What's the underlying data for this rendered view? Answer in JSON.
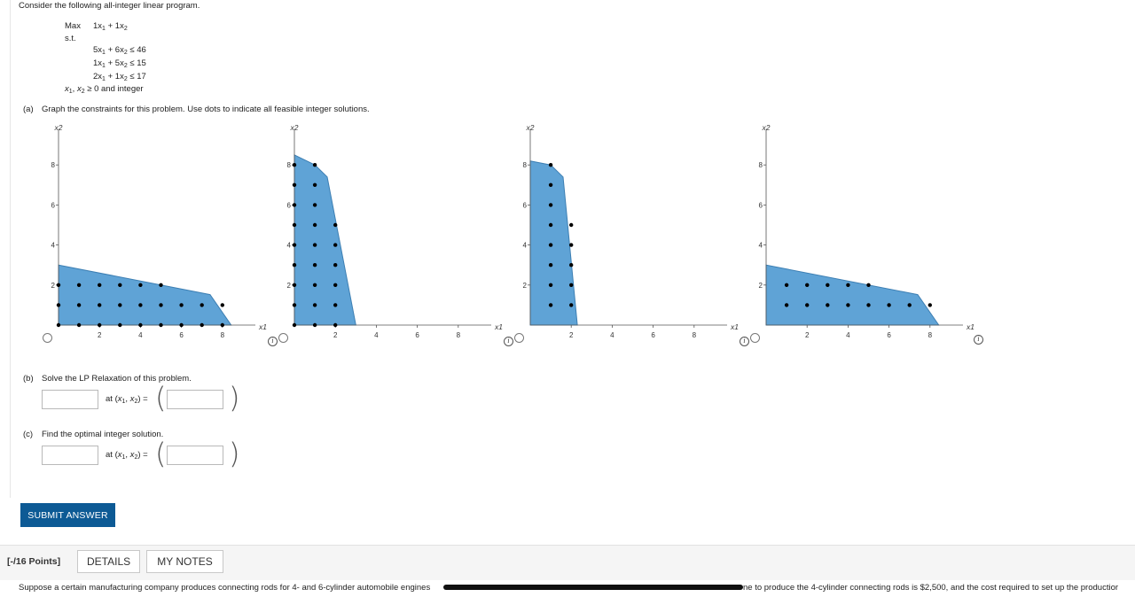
{
  "question": {
    "intro": "Consider the following all-integer linear program.",
    "objective": {
      "label": "Max",
      "expr": [
        "1x",
        "1",
        "+",
        "1x",
        "2"
      ]
    },
    "st": "s.t.",
    "constraints": [
      {
        "c1": "5x",
        "c2": "6x",
        "rel": "≤",
        "rhs": "46"
      },
      {
        "c1": "1x",
        "c2": "5x",
        "rel": "≤",
        "rhs": "15"
      },
      {
        "c1": "2x",
        "c2": "1x",
        "rel": "≤",
        "rhs": "17"
      }
    ],
    "nonneg": "≥ 0 and integer"
  },
  "part_a": {
    "label": "(a)",
    "text": "Graph the constraints for this problem. Use dots to indicate all feasible integer solutions."
  },
  "part_b": {
    "label": "(b)",
    "text": "Solve the LP Relaxation of this problem.",
    "value": "",
    "point": ""
  },
  "part_c": {
    "label": "(c)",
    "text": "Find the optimal integer solution.",
    "value": "",
    "point": ""
  },
  "at_label": "at",
  "graph_axis": {
    "ylabel": "x2",
    "xlabel": "x1",
    "xticks": [
      "2",
      "4",
      "6",
      "8"
    ],
    "yticks": [
      "2",
      "4",
      "6",
      "8"
    ]
  },
  "graph_options": [
    {
      "polygon": [
        [
          0,
          0
        ],
        [
          0,
          3
        ],
        [
          7.4,
          1.52
        ],
        [
          8.43,
          0
        ]
      ],
      "points": [
        [
          0,
          0
        ],
        [
          1,
          0
        ],
        [
          2,
          0
        ],
        [
          3,
          0
        ],
        [
          4,
          0
        ],
        [
          5,
          0
        ],
        [
          6,
          0
        ],
        [
          7,
          0
        ],
        [
          8,
          0
        ],
        [
          0,
          1
        ],
        [
          1,
          1
        ],
        [
          2,
          1
        ],
        [
          3,
          1
        ],
        [
          4,
          1
        ],
        [
          5,
          1
        ],
        [
          6,
          1
        ],
        [
          7,
          1
        ],
        [
          8,
          1
        ],
        [
          0,
          2
        ],
        [
          1,
          2
        ],
        [
          2,
          2
        ],
        [
          3,
          2
        ],
        [
          4,
          2
        ],
        [
          5,
          2
        ]
      ]
    },
    {
      "polygon": [
        [
          0,
          0
        ],
        [
          0,
          8.5
        ],
        [
          1,
          8
        ],
        [
          1.6,
          7.4
        ],
        [
          3,
          0
        ]
      ],
      "points": [
        [
          0,
          0
        ],
        [
          1,
          0
        ],
        [
          2,
          0
        ],
        [
          0,
          1
        ],
        [
          1,
          1
        ],
        [
          2,
          1
        ],
        [
          0,
          2
        ],
        [
          1,
          2
        ],
        [
          2,
          2
        ],
        [
          0,
          3
        ],
        [
          1,
          3
        ],
        [
          2,
          3
        ],
        [
          0,
          4
        ],
        [
          1,
          4
        ],
        [
          2,
          4
        ],
        [
          0,
          5
        ],
        [
          1,
          5
        ],
        [
          2,
          5
        ],
        [
          0,
          6
        ],
        [
          1,
          6
        ],
        [
          0,
          7
        ],
        [
          1,
          7
        ],
        [
          0,
          8
        ],
        [
          1,
          8
        ]
      ]
    },
    {
      "polygon": [
        [
          0,
          0
        ],
        [
          0,
          8.2
        ],
        [
          1,
          8
        ],
        [
          1.6,
          7.4
        ],
        [
          2.3,
          0
        ]
      ],
      "points": [
        [
          1,
          1
        ],
        [
          2,
          1
        ],
        [
          1,
          2
        ],
        [
          2,
          2
        ],
        [
          1,
          3
        ],
        [
          2,
          3
        ],
        [
          1,
          4
        ],
        [
          2,
          4
        ],
        [
          1,
          5
        ],
        [
          2,
          5
        ],
        [
          1,
          6
        ],
        [
          1,
          7
        ],
        [
          1,
          8
        ]
      ]
    },
    {
      "polygon": [
        [
          0,
          0
        ],
        [
          0,
          3
        ],
        [
          7.4,
          1.52
        ],
        [
          8.43,
          0
        ]
      ],
      "points": [
        [
          1,
          1
        ],
        [
          2,
          1
        ],
        [
          3,
          1
        ],
        [
          4,
          1
        ],
        [
          5,
          1
        ],
        [
          6,
          1
        ],
        [
          7,
          1
        ],
        [
          8,
          1
        ],
        [
          1,
          2
        ],
        [
          2,
          2
        ],
        [
          3,
          2
        ],
        [
          4,
          2
        ],
        [
          5,
          2
        ]
      ]
    }
  ],
  "buttons": {
    "submit": "SUBMIT ANSWER",
    "details": "DETAILS",
    "notes": "MY NOTES"
  },
  "points_label": "[-/16 Points]",
  "next_question_start": "Suppose a certain manufacturing company produces connecting rods for 4- and 6-cylinder automobile engines",
  "next_question_end": "ne to produce the 4-cylinder connecting rods is $2,500, and the cost required to set up the productior",
  "colors": {
    "region": "#5fa3d6",
    "region_stroke": "#3d7fb3",
    "button": "#0d5a95"
  }
}
